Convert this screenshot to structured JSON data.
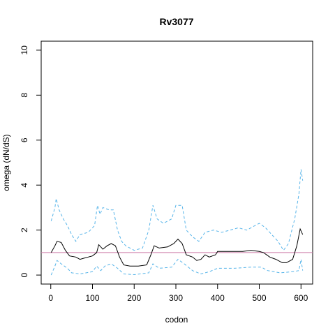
{
  "chart_data": {
    "type": "line",
    "title": "Rv3077",
    "x_label": "codon",
    "y_label": "omega (dN/dS)",
    "xlim": [
      -23,
      628
    ],
    "ylim": [
      -0.4,
      10.4
    ],
    "xticks": [
      0,
      100,
      200,
      300,
      400,
      500,
      600
    ],
    "yticks": [
      0,
      2,
      4,
      6,
      8,
      10
    ],
    "hline": 1,
    "hline_color": "#cc79a7",
    "series": [
      {
        "color": "#56b4e9",
        "dash": true,
        "x": [
          1,
          10,
          13,
          20,
          30,
          40,
          50,
          60,
          70,
          90,
          105,
          112,
          118,
          125,
          140,
          150,
          160,
          170,
          180,
          200,
          220,
          235,
          245,
          255,
          270,
          290,
          300,
          315,
          325,
          340,
          355,
          370,
          390,
          410,
          430,
          450,
          470,
          490,
          500,
          515,
          530,
          545,
          558,
          570,
          585,
          595,
          600,
          604
        ],
        "values": [
          2.4,
          3.0,
          3.4,
          2.9,
          2.5,
          2.2,
          1.8,
          1.5,
          1.8,
          1.9,
          2.2,
          3.1,
          2.7,
          3.0,
          2.9,
          2.9,
          2.0,
          1.5,
          1.3,
          1.1,
          1.2,
          2.0,
          3.1,
          2.5,
          2.3,
          2.5,
          3.1,
          3.1,
          2.0,
          1.7,
          1.5,
          1.9,
          2.0,
          1.9,
          2.0,
          2.1,
          2.0,
          2.2,
          2.3,
          2.1,
          1.8,
          1.5,
          1.1,
          1.4,
          2.5,
          3.6,
          4.7,
          4.2
        ]
      },
      {
        "color": "#56b4e9",
        "dash": true,
        "x": [
          1,
          10,
          15,
          25,
          40,
          50,
          70,
          100,
          110,
          120,
          130,
          145,
          160,
          175,
          200,
          235,
          245,
          260,
          290,
          305,
          320,
          340,
          360,
          380,
          400,
          440,
          480,
          505,
          520,
          550,
          580,
          595,
          600,
          604
        ],
        "values": [
          0.0,
          0.4,
          0.65,
          0.5,
          0.3,
          0.1,
          0.05,
          0.15,
          0.4,
          0.2,
          0.4,
          0.5,
          0.3,
          0.05,
          0.02,
          0.1,
          0.5,
          0.3,
          0.35,
          0.7,
          0.5,
          0.2,
          0.05,
          0.15,
          0.3,
          0.3,
          0.35,
          0.35,
          0.2,
          0.1,
          0.15,
          0.2,
          0.7,
          0.2
        ]
      },
      {
        "color": "#000000",
        "dash": false,
        "x": [
          1,
          10,
          15,
          25,
          35,
          45,
          60,
          70,
          80,
          90,
          100,
          110,
          115,
          125,
          135,
          145,
          155,
          165,
          175,
          190,
          210,
          230,
          240,
          248,
          260,
          280,
          295,
          305,
          315,
          325,
          340,
          350,
          360,
          370,
          380,
          395,
          400,
          420,
          440,
          460,
          480,
          500,
          510,
          525,
          540,
          555,
          565,
          580,
          590,
          598,
          604
        ],
        "values": [
          1.0,
          1.3,
          1.5,
          1.45,
          1.1,
          0.85,
          0.8,
          0.7,
          0.75,
          0.8,
          0.85,
          1.0,
          1.35,
          1.15,
          1.3,
          1.4,
          1.3,
          0.8,
          0.45,
          0.4,
          0.4,
          0.45,
          0.9,
          1.3,
          1.2,
          1.25,
          1.4,
          1.6,
          1.4,
          0.9,
          0.8,
          0.65,
          0.7,
          0.9,
          0.8,
          0.9,
          1.05,
          1.05,
          1.05,
          1.05,
          1.1,
          1.05,
          1.0,
          0.8,
          0.7,
          0.55,
          0.55,
          0.7,
          1.3,
          2.05,
          1.8
        ]
      }
    ]
  }
}
